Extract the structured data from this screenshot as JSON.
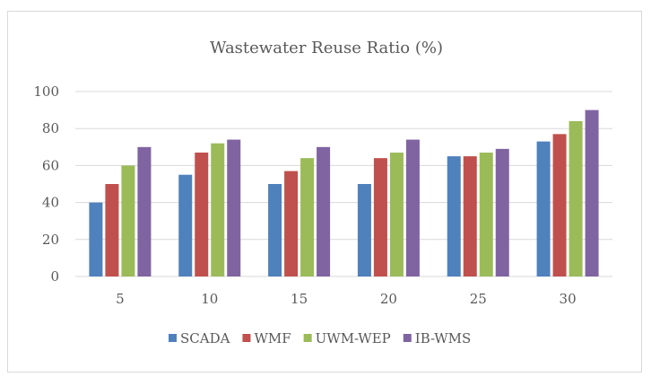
{
  "chart_data": {
    "type": "bar",
    "title": "Wastewater Reuse Ratio (%)",
    "xlabel": "",
    "ylabel": "",
    "categories": [
      "5",
      "10",
      "15",
      "20",
      "25",
      "30"
    ],
    "ylim": [
      0,
      100
    ],
    "yticks": [
      "0",
      "20",
      "40",
      "60",
      "80",
      "100"
    ],
    "grid": true,
    "legend_position": "bottom",
    "series": [
      {
        "name": "SCADA",
        "color": "#4f81bd",
        "values": [
          40,
          55,
          50,
          50,
          65,
          73
        ]
      },
      {
        "name": "WMF",
        "color": "#c0504d",
        "values": [
          50,
          67,
          57,
          64,
          65,
          77
        ]
      },
      {
        "name": "UWM-WEP",
        "color": "#9bbb59",
        "values": [
          60,
          72,
          64,
          67,
          67,
          84
        ]
      },
      {
        "name": "IB-WMS",
        "color": "#8064a2",
        "values": [
          70,
          74,
          70,
          74,
          69,
          90
        ]
      }
    ]
  }
}
